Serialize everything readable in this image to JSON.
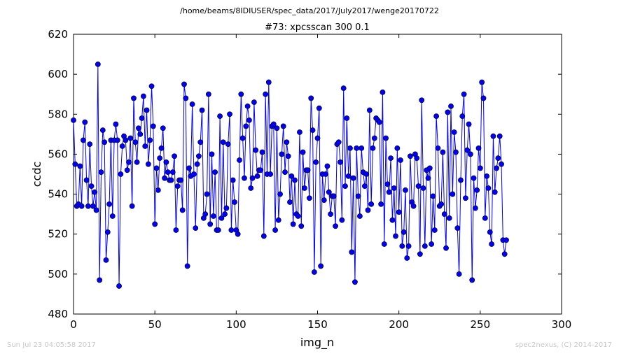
{
  "chart_data": {
    "type": "line",
    "suptitle": "/home/beams/8IDIUSER/spec_data/2017/July2017/wenge20170722",
    "title": "#73: xpcsscan 300 0.1",
    "xlabel": "img_n",
    "ylabel": "ccdc",
    "xlim": [
      0,
      300
    ],
    "ylim": [
      480,
      620
    ],
    "xticks": [
      0,
      50,
      100,
      150,
      200,
      250,
      300
    ],
    "yticks": [
      480,
      500,
      520,
      540,
      560,
      580,
      600,
      620
    ],
    "grid": false,
    "marker": "circle",
    "color": "#0000ff",
    "series": [
      {
        "values": [
          577,
          555,
          534,
          535,
          554,
          534,
          567,
          576,
          547,
          534,
          565,
          544,
          534,
          541,
          532,
          605,
          497,
          551,
          572,
          566,
          507,
          521,
          535,
          567,
          529,
          567,
          575,
          567,
          494,
          550,
          564,
          569,
          567,
          552,
          556,
          568,
          534,
          588,
          566,
          556,
          573,
          570,
          578,
          589,
          564,
          582,
          555,
          567,
          594,
          574,
          525,
          553,
          542,
          558,
          563,
          573,
          548,
          556,
          551,
          547,
          547,
          551,
          559,
          522,
          544,
          547,
          547,
          532,
          595,
          588,
          504,
          553,
          549,
          585,
          550,
          523,
          555,
          559,
          566,
          582,
          528,
          530,
          540,
          590,
          525,
          560,
          529,
          551,
          522,
          522,
          579,
          528,
          566,
          530,
          533,
          565,
          580,
          522,
          547,
          536,
          522,
          520,
          557,
          590,
          568,
          548,
          574,
          584,
          577,
          543,
          548,
          586,
          562,
          549,
          552,
          552,
          561,
          519,
          590,
          550,
          596,
          550,
          574,
          575,
          522,
          573,
          527,
          540,
          560,
          574,
          551,
          566,
          559,
          536,
          549,
          525,
          547,
          530,
          529,
          571,
          524,
          561,
          543,
          552,
          552,
          538,
          588,
          572,
          501,
          556,
          568,
          583,
          504,
          550,
          537,
          550,
          554,
          541,
          530,
          539,
          539,
          524,
          565,
          566,
          556,
          527,
          593,
          544,
          578,
          549,
          563,
          511,
          548,
          496,
          563,
          539,
          529,
          563,
          551,
          544,
          550,
          532,
          582,
          535,
          563,
          568,
          578,
          577,
          576,
          535,
          591,
          515,
          568,
          545,
          541,
          558,
          527,
          543,
          519,
          563,
          531,
          557,
          514,
          521,
          542,
          508,
          514,
          559,
          536,
          534,
          560,
          558,
          544,
          510,
          587,
          543,
          514,
          552,
          548,
          553,
          515,
          539,
          522,
          579,
          563,
          534,
          535,
          561,
          530,
          513,
          581,
          528,
          584,
          540,
          571,
          561,
          523,
          500,
          547,
          579,
          590,
          538,
          562,
          575,
          560,
          497,
          548,
          533,
          542,
          563,
          553,
          596,
          588,
          528,
          549,
          543,
          521,
          515,
          569,
          541,
          553,
          558,
          569,
          555,
          517,
          510,
          517
        ]
      }
    ]
  },
  "footer": {
    "timestamp": "Sun Jul 23 04:05:58 2017",
    "credit": "spec2nexus, (C) 2014-2017"
  }
}
